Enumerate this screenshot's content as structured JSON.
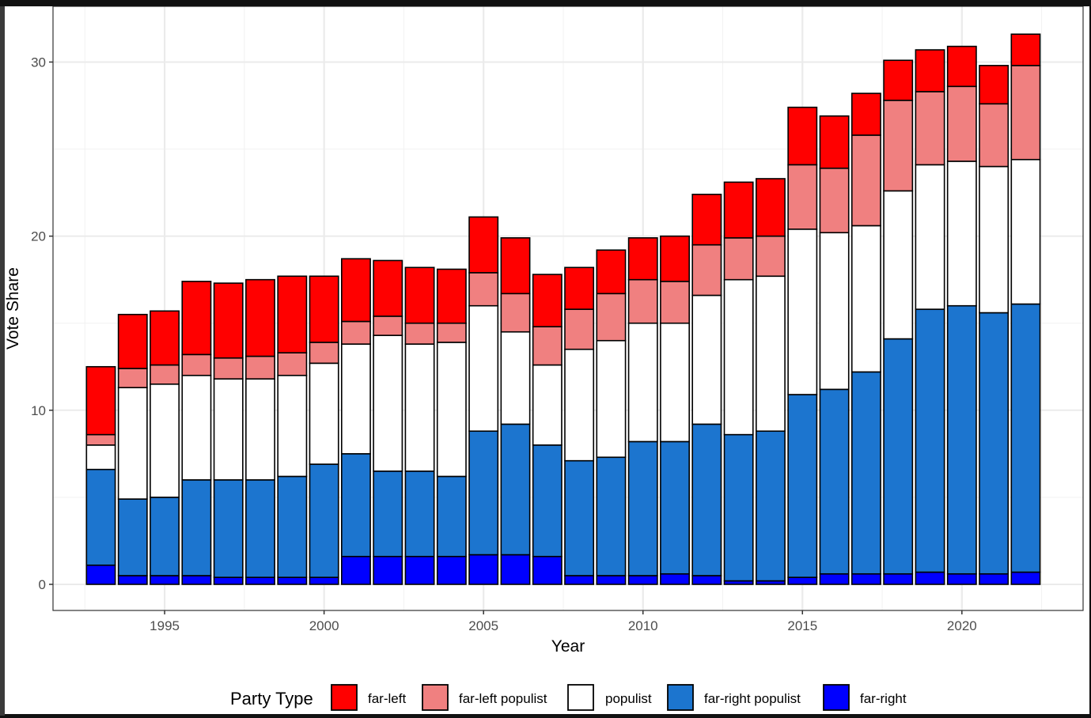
{
  "chart_data": {
    "type": "bar",
    "stacked": true,
    "title": "",
    "xlabel": "Year",
    "ylabel": "Vote Share",
    "xlim": [
      1991.5,
      2023.8
    ],
    "ylim": [
      -1.5,
      33.2
    ],
    "xticks": [
      1995,
      2000,
      2005,
      2010,
      2015,
      2020
    ],
    "yticks": [
      0,
      10,
      20,
      30
    ],
    "grid": true,
    "legend": {
      "title": "Party Type",
      "position": "bottom"
    },
    "x": [
      1993,
      1994,
      1995,
      1996,
      1997,
      1998,
      1999,
      2000,
      2001,
      2002,
      2003,
      2004,
      2005,
      2006,
      2007,
      2008,
      2009,
      2010,
      2011,
      2012,
      2013,
      2014,
      2015,
      2016,
      2017,
      2018,
      2019,
      2020,
      2021,
      2022
    ],
    "series": [
      {
        "name": "far-right",
        "color": "#0000FF",
        "values": [
          1.1,
          0.5,
          0.5,
          0.5,
          0.4,
          0.4,
          0.4,
          0.4,
          1.6,
          1.6,
          1.6,
          1.6,
          1.7,
          1.7,
          1.6,
          0.5,
          0.5,
          0.5,
          0.6,
          0.5,
          0.2,
          0.2,
          0.4,
          0.6,
          0.6,
          0.6,
          0.7,
          0.6,
          0.6,
          0.7
        ]
      },
      {
        "name": "far-right populist",
        "color": "#1C75CF",
        "values": [
          5.5,
          4.4,
          4.5,
          5.5,
          5.6,
          5.6,
          5.8,
          6.5,
          5.9,
          4.9,
          4.9,
          4.6,
          7.1,
          7.5,
          6.4,
          6.6,
          6.8,
          7.7,
          7.6,
          8.7,
          8.4,
          8.6,
          10.5,
          10.6,
          11.6,
          13.5,
          15.1,
          15.4,
          15.0,
          15.4
        ]
      },
      {
        "name": "populist",
        "color": "#FFFFFF",
        "values": [
          1.4,
          6.4,
          6.5,
          6.0,
          5.8,
          5.8,
          5.8,
          5.8,
          6.3,
          7.8,
          7.3,
          7.7,
          7.2,
          5.3,
          4.6,
          6.4,
          6.7,
          6.8,
          6.8,
          7.4,
          8.9,
          8.9,
          9.5,
          9.0,
          8.4,
          8.5,
          8.3,
          8.3,
          8.4,
          8.3
        ]
      },
      {
        "name": "far-left populist",
        "color": "#F08080",
        "values": [
          0.6,
          1.1,
          1.1,
          1.2,
          1.2,
          1.3,
          1.3,
          1.2,
          1.3,
          1.1,
          1.2,
          1.1,
          1.9,
          2.2,
          2.2,
          2.3,
          2.7,
          2.5,
          2.4,
          2.9,
          2.4,
          2.3,
          3.7,
          3.7,
          5.2,
          5.2,
          4.2,
          4.3,
          3.6,
          5.4
        ]
      },
      {
        "name": "far-left",
        "color": "#FF0000",
        "values": [
          3.9,
          3.1,
          3.1,
          4.2,
          4.3,
          4.4,
          4.4,
          3.8,
          3.6,
          3.2,
          3.2,
          3.1,
          3.2,
          3.2,
          3.0,
          2.4,
          2.5,
          2.4,
          2.6,
          2.9,
          3.2,
          3.3,
          3.3,
          3.0,
          2.4,
          2.3,
          2.4,
          2.3,
          2.2,
          1.8
        ]
      }
    ]
  }
}
